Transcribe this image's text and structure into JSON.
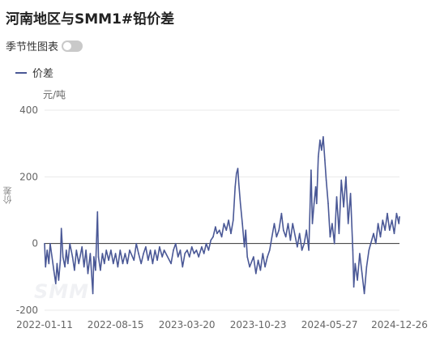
{
  "page": {
    "title": "河南地区与SMM1#铅价差",
    "seasonal_toggle_label": "季节性图表",
    "seasonal_toggle_on": false
  },
  "colors": {
    "series": "#4a5896",
    "grid": "#e8e8e8",
    "axis": "#333333",
    "tick": "#666666"
  },
  "chart_data": {
    "type": "line",
    "title": "河南地区与SMM1#铅价差",
    "unit_label": "元/吨",
    "ylabel": "价差",
    "xlabel": "",
    "ylim": [
      -200,
      400
    ],
    "yticks": [
      400,
      200,
      0,
      -200
    ],
    "xticks": [
      "2022-01-11",
      "2022-08-15",
      "2023-03-20",
      "2023-10-23",
      "2024-05-27",
      "2024-12-26"
    ],
    "x_range": [
      "2022-01-11",
      "2024-12-26"
    ],
    "grid": true,
    "legend_position": "top-left",
    "series": [
      {
        "name": "价差",
        "color": "#4a5896",
        "points": [
          [
            "2022-01-11",
            0
          ],
          [
            "2022-01-14",
            -70
          ],
          [
            "2022-01-19",
            -20
          ],
          [
            "2022-01-24",
            -60
          ],
          [
            "2022-01-28",
            0
          ],
          [
            "2022-02-08",
            -80
          ],
          [
            "2022-02-14",
            -120
          ],
          [
            "2022-02-18",
            -60
          ],
          [
            "2022-02-23",
            -110
          ],
          [
            "2022-02-28",
            -50
          ],
          [
            "2022-03-03",
            45
          ],
          [
            "2022-03-08",
            -40
          ],
          [
            "2022-03-14",
            -70
          ],
          [
            "2022-03-18",
            -20
          ],
          [
            "2022-03-23",
            -60
          ],
          [
            "2022-03-29",
            0
          ],
          [
            "2022-04-06",
            -40
          ],
          [
            "2022-04-12",
            -80
          ],
          [
            "2022-04-18",
            -20
          ],
          [
            "2022-04-25",
            -60
          ],
          [
            "2022-05-05",
            -10
          ],
          [
            "2022-05-11",
            -70
          ],
          [
            "2022-05-17",
            -20
          ],
          [
            "2022-05-23",
            -90
          ],
          [
            "2022-05-30",
            -30
          ],
          [
            "2022-06-07",
            -150
          ],
          [
            "2022-06-10",
            -40
          ],
          [
            "2022-06-15",
            -80
          ],
          [
            "2022-06-21",
            95
          ],
          [
            "2022-06-24",
            -40
          ],
          [
            "2022-06-30",
            -80
          ],
          [
            "2022-07-06",
            -30
          ],
          [
            "2022-07-12",
            -60
          ],
          [
            "2022-07-18",
            -20
          ],
          [
            "2022-07-25",
            -50
          ],
          [
            "2022-08-01",
            -20
          ],
          [
            "2022-08-08",
            -60
          ],
          [
            "2022-08-15",
            -30
          ],
          [
            "2022-08-22",
            -70
          ],
          [
            "2022-08-29",
            -20
          ],
          [
            "2022-09-06",
            -60
          ],
          [
            "2022-09-13",
            -30
          ],
          [
            "2022-09-20",
            -60
          ],
          [
            "2022-09-27",
            -20
          ],
          [
            "2022-10-10",
            -50
          ],
          [
            "2022-10-17",
            0
          ],
          [
            "2022-10-24",
            -30
          ],
          [
            "2022-11-01",
            -60
          ],
          [
            "2022-11-08",
            -30
          ],
          [
            "2022-11-15",
            -10
          ],
          [
            "2022-11-22",
            -50
          ],
          [
            "2022-11-29",
            -20
          ],
          [
            "2022-12-06",
            -60
          ],
          [
            "2022-12-13",
            -20
          ],
          [
            "2022-12-20",
            -50
          ],
          [
            "2022-12-27",
            -10
          ],
          [
            "2023-01-04",
            -40
          ],
          [
            "2023-01-10",
            -20
          ],
          [
            "2023-01-31",
            -60
          ],
          [
            "2023-02-07",
            -20
          ],
          [
            "2023-02-14",
            0
          ],
          [
            "2023-02-21",
            -40
          ],
          [
            "2023-02-28",
            -20
          ],
          [
            "2023-03-07",
            -70
          ],
          [
            "2023-03-14",
            -30
          ],
          [
            "2023-03-21",
            -20
          ],
          [
            "2023-03-28",
            -40
          ],
          [
            "2023-04-04",
            -10
          ],
          [
            "2023-04-11",
            -30
          ],
          [
            "2023-04-18",
            -20
          ],
          [
            "2023-04-25",
            -40
          ],
          [
            "2023-05-04",
            -10
          ],
          [
            "2023-05-11",
            -30
          ],
          [
            "2023-05-18",
            0
          ],
          [
            "2023-05-25",
            -20
          ],
          [
            "2023-06-01",
            10
          ],
          [
            "2023-06-08",
            20
          ],
          [
            "2023-06-15",
            50
          ],
          [
            "2023-06-20",
            30
          ],
          [
            "2023-06-27",
            40
          ],
          [
            "2023-07-04",
            20
          ],
          [
            "2023-07-11",
            60
          ],
          [
            "2023-07-18",
            40
          ],
          [
            "2023-07-25",
            70
          ],
          [
            "2023-08-01",
            30
          ],
          [
            "2023-08-08",
            70
          ],
          [
            "2023-08-14",
            170
          ],
          [
            "2023-08-18",
            210
          ],
          [
            "2023-08-22",
            225
          ],
          [
            "2023-08-25",
            180
          ],
          [
            "2023-08-30",
            120
          ],
          [
            "2023-09-05",
            60
          ],
          [
            "2023-09-11",
            -10
          ],
          [
            "2023-09-15",
            40
          ],
          [
            "2023-09-20",
            -40
          ],
          [
            "2023-09-27",
            -70
          ],
          [
            "2023-10-09",
            -40
          ],
          [
            "2023-10-16",
            -90
          ],
          [
            "2023-10-23",
            -50
          ],
          [
            "2023-10-30",
            -80
          ],
          [
            "2023-11-06",
            -30
          ],
          [
            "2023-11-13",
            -70
          ],
          [
            "2023-11-20",
            -40
          ],
          [
            "2023-11-27",
            -20
          ],
          [
            "2023-12-04",
            20
          ],
          [
            "2023-12-11",
            60
          ],
          [
            "2023-12-18",
            20
          ],
          [
            "2023-12-25",
            40
          ],
          [
            "2024-01-02",
            90
          ],
          [
            "2024-01-08",
            40
          ],
          [
            "2024-01-15",
            20
          ],
          [
            "2024-01-22",
            60
          ],
          [
            "2024-01-29",
            10
          ],
          [
            "2024-02-05",
            60
          ],
          [
            "2024-02-19",
            -10
          ],
          [
            "2024-02-26",
            30
          ],
          [
            "2024-03-04",
            -20
          ],
          [
            "2024-03-11",
            0
          ],
          [
            "2024-03-18",
            40
          ],
          [
            "2024-03-25",
            -20
          ],
          [
            "2024-04-01",
            220
          ],
          [
            "2024-04-05",
            60
          ],
          [
            "2024-04-10",
            120
          ],
          [
            "2024-04-15",
            170
          ],
          [
            "2024-04-18",
            120
          ],
          [
            "2024-04-23",
            260
          ],
          [
            "2024-04-28",
            310
          ],
          [
            "2024-05-03",
            280
          ],
          [
            "2024-05-08",
            320
          ],
          [
            "2024-05-13",
            250
          ],
          [
            "2024-05-17",
            190
          ],
          [
            "2024-05-23",
            120
          ],
          [
            "2024-05-29",
            20
          ],
          [
            "2024-06-04",
            60
          ],
          [
            "2024-06-11",
            0
          ],
          [
            "2024-06-18",
            140
          ],
          [
            "2024-06-25",
            30
          ],
          [
            "2024-07-02",
            190
          ],
          [
            "2024-07-09",
            110
          ],
          [
            "2024-07-16",
            200
          ],
          [
            "2024-07-23",
            60
          ],
          [
            "2024-07-30",
            150
          ],
          [
            "2024-08-06",
            -20
          ],
          [
            "2024-08-09",
            -130
          ],
          [
            "2024-08-13",
            -60
          ],
          [
            "2024-08-20",
            -110
          ],
          [
            "2024-08-27",
            -30
          ],
          [
            "2024-09-03",
            -90
          ],
          [
            "2024-09-10",
            -150
          ],
          [
            "2024-09-17",
            -70
          ],
          [
            "2024-09-24",
            -20
          ],
          [
            "2024-10-08",
            30
          ],
          [
            "2024-10-15",
            0
          ],
          [
            "2024-10-22",
            60
          ],
          [
            "2024-10-29",
            20
          ],
          [
            "2024-11-05",
            70
          ],
          [
            "2024-11-12",
            40
          ],
          [
            "2024-11-19",
            90
          ],
          [
            "2024-11-26",
            40
          ],
          [
            "2024-12-03",
            70
          ],
          [
            "2024-12-10",
            30
          ],
          [
            "2024-12-17",
            90
          ],
          [
            "2024-12-24",
            60
          ],
          [
            "2024-12-26",
            80
          ]
        ]
      }
    ]
  }
}
